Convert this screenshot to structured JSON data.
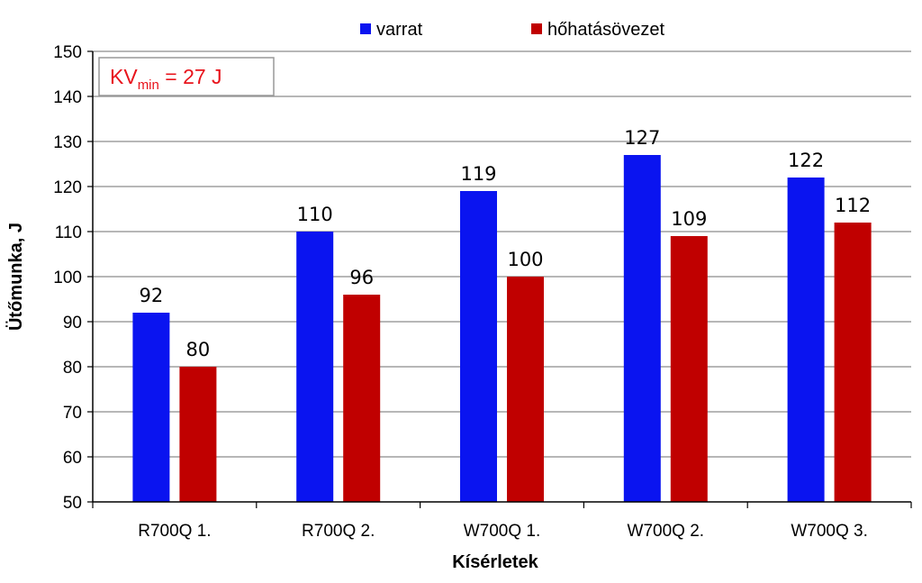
{
  "chart_data": {
    "type": "bar",
    "title": "",
    "xlabel": "Kísérletek",
    "ylabel": "Ütőmunka, J",
    "ylim": [
      50,
      150
    ],
    "yticks": [
      50,
      60,
      70,
      80,
      90,
      100,
      110,
      120,
      130,
      140,
      150
    ],
    "grid": true,
    "legend_position": "top",
    "categories": [
      "R700Q 1.",
      "R700Q 2.",
      "W700Q 1.",
      "W700Q 2.",
      "W700Q 3."
    ],
    "series": [
      {
        "name": "varrat",
        "color": "#0a14f0",
        "values": [
          92,
          110,
          119,
          127,
          122
        ]
      },
      {
        "name": "hőhatásövezet",
        "color": "#c00000",
        "values": [
          80,
          96,
          100,
          109,
          112
        ]
      }
    ],
    "annotation": {
      "prefix": "KV",
      "subscript": "min",
      "suffix": " = 27 J",
      "color": "#e8141c"
    }
  }
}
